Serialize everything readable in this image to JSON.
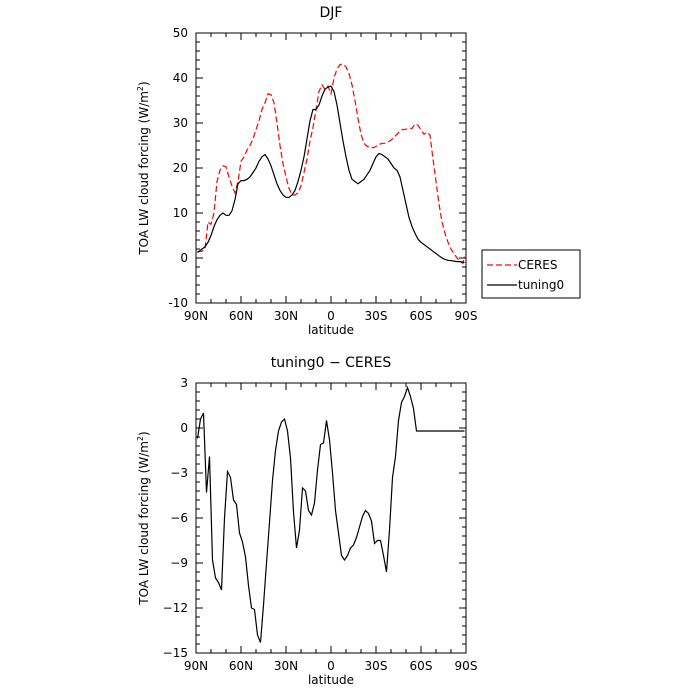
{
  "chart_data": [
    {
      "type": "line",
      "title": "DJF",
      "xlabel": "latitude",
      "ylabel_main": "TOA LW cloud forcing (W/m",
      "ylabel_sup": "2",
      "ylabel_end": ")",
      "xlim": [
        90,
        -90
      ],
      "ylim": [
        -10,
        50
      ],
      "x_ticks": [
        90,
        60,
        30,
        0,
        -30,
        -60,
        -90
      ],
      "x_tick_labels": [
        "90N",
        "60N",
        "30N",
        "0",
        "30S",
        "60S",
        "90S"
      ],
      "y_ticks": [
        -10,
        0,
        10,
        20,
        30,
        40,
        50
      ],
      "y_tick_labels": [
        "-10",
        "0",
        "10",
        "20",
        "30",
        "40",
        "50"
      ],
      "legend_placement": "right-outside",
      "series": [
        {
          "name": "CERES",
          "color": "#ff0000",
          "dash": "dashed",
          "x": [
            89,
            86,
            84,
            82,
            80,
            78,
            76,
            74,
            72,
            70,
            68,
            66,
            64,
            62,
            60,
            58,
            56,
            54,
            52,
            50,
            48,
            46,
            44,
            42,
            40,
            38,
            36,
            34,
            32,
            30,
            28,
            26,
            24,
            22,
            20,
            18,
            16,
            14,
            12,
            10,
            8,
            6,
            4,
            2,
            0,
            -2,
            -4,
            -6,
            -8,
            -10,
            -12,
            -14,
            -16,
            -18,
            -20,
            -22,
            -24,
            -26,
            -28,
            -30,
            -32,
            -34,
            -36,
            -38,
            -40,
            -42,
            -44,
            -46,
            -48,
            -50,
            -52,
            -54,
            -56,
            -58,
            -60,
            -62,
            -64,
            -66,
            -68,
            -70,
            -72,
            -74,
            -76,
            -78,
            -80,
            -82,
            -84,
            -86,
            -88,
            -89
          ],
          "values": [
            1.5,
            1.5,
            2,
            8,
            7.5,
            10,
            17,
            19.5,
            20.5,
            20.3,
            18,
            16,
            14.5,
            17,
            21.5,
            22.5,
            24,
            25,
            26.5,
            28.5,
            30.5,
            33,
            34.5,
            36.5,
            36.3,
            34.5,
            30,
            25,
            21,
            18,
            15.5,
            14,
            14,
            14.5,
            16,
            19,
            22,
            26,
            29,
            33,
            37,
            38.5,
            37.5,
            38.2,
            36.5,
            40,
            42,
            43,
            43,
            42.5,
            41,
            38.5,
            35,
            31,
            27.5,
            25.5,
            24.8,
            24.8,
            24.5,
            24.8,
            25.2,
            25.5,
            25.5,
            25.8,
            26.2,
            26.8,
            27.5,
            28.2,
            28.6,
            28.6,
            28.8,
            28.8,
            29.8,
            29.5,
            28.5,
            27.5,
            28,
            27.3,
            22,
            17,
            12,
            8,
            5.5,
            3.5,
            2,
            1,
            0,
            -0.8,
            -1.2,
            0.3
          ]
        },
        {
          "name": "tuning0",
          "color": "#000000",
          "dash": "solid",
          "x": [
            89,
            86,
            84,
            82,
            80,
            78,
            76,
            74,
            72,
            70,
            68,
            66,
            64,
            62,
            60,
            58,
            56,
            54,
            52,
            50,
            48,
            46,
            44,
            42,
            40,
            38,
            36,
            34,
            32,
            30,
            28,
            26,
            24,
            22,
            20,
            18,
            16,
            14,
            12,
            10,
            8,
            6,
            4,
            2,
            0,
            -2,
            -4,
            -6,
            -8,
            -10,
            -12,
            -14,
            -16,
            -18,
            -20,
            -22,
            -24,
            -26,
            -28,
            -30,
            -32,
            -34,
            -36,
            -38,
            -40,
            -42,
            -44,
            -46,
            -48,
            -50,
            -52,
            -54,
            -56,
            -58,
            -60,
            -62,
            -64,
            -66,
            -68,
            -70,
            -72,
            -74,
            -76,
            -78,
            -80,
            -82,
            -84,
            -86,
            -88,
            -89
          ],
          "values": [
            1.2,
            2,
            2.5,
            3.5,
            5,
            7,
            8.5,
            9.5,
            10,
            9.5,
            9.5,
            10.5,
            13,
            16.5,
            17.2,
            17.2,
            17.5,
            18,
            19,
            20,
            21.5,
            22.5,
            23,
            22,
            20.5,
            18.5,
            16.5,
            15,
            14,
            13.5,
            13.5,
            14,
            15,
            17,
            19.5,
            22.5,
            26.5,
            30.5,
            33,
            33,
            34,
            36,
            37.5,
            38,
            38.2,
            37,
            34,
            30,
            26,
            22.5,
            19.5,
            17.5,
            17,
            16.5,
            17,
            17.5,
            18.5,
            19.5,
            21,
            22.5,
            23.2,
            23,
            22.5,
            22,
            21,
            20,
            19.5,
            18,
            15,
            12,
            9,
            7,
            5.5,
            4.2,
            3.5,
            3,
            2.5,
            2,
            1.5,
            1,
            0.5,
            0,
            -0.3,
            -0.5,
            -0.6,
            -0.7,
            -0.8,
            -0.8,
            -0.9,
            -1
          ],
          "note_x_override": true
        }
      ]
    },
    {
      "type": "line",
      "title": "tuning0 − CERES",
      "xlabel": "latitude",
      "ylabel_main": "TOA LW cloud forcing (W/m",
      "ylabel_sup": "2",
      "ylabel_end": ")",
      "xlim": [
        90,
        -90
      ],
      "ylim": [
        -15,
        3
      ],
      "x_ticks": [
        90,
        60,
        30,
        0,
        -30,
        -60,
        -90
      ],
      "x_tick_labels": [
        "90N",
        "60N",
        "30N",
        "0",
        "30S",
        "60S",
        "90S"
      ],
      "y_ticks": [
        -15,
        -12,
        -9,
        -6,
        -3,
        0,
        3
      ],
      "y_tick_labels": [
        "−15",
        "−12",
        "−9",
        "−6",
        "−3",
        "0",
        "3"
      ],
      "series": [
        {
          "color": "#000000",
          "dash": "solid",
          "x": [
            89,
            87,
            85,
            83,
            81,
            79,
            77,
            75,
            73,
            71,
            69,
            67,
            65,
            63,
            61,
            59,
            57,
            55,
            53,
            51,
            49,
            47,
            45,
            43,
            41,
            39,
            37,
            35,
            33,
            31,
            29,
            27,
            25,
            23,
            21,
            19,
            17,
            15,
            13,
            11,
            9,
            7,
            5,
            3,
            1,
            -1,
            -3,
            -5,
            -7,
            -9,
            -11,
            -13,
            -15,
            -17,
            -19,
            -21,
            -23,
            -25,
            -27,
            -29,
            -31,
            -33,
            -35,
            -37,
            -39,
            -41,
            -43,
            -45,
            -47,
            -49,
            -51,
            -53,
            -55,
            -57,
            -59,
            -61,
            -63,
            -65,
            -67,
            -69,
            -71,
            -73,
            -75,
            -77,
            -79,
            -81,
            -83,
            -85,
            -87,
            -89
          ],
          "values": [
            -0.7,
            0.6,
            1.0,
            -4.3,
            -1.9,
            -8.8,
            -10.0,
            -10.3,
            -10.8,
            -6.0,
            -2.9,
            -3.3,
            -4.8,
            -5.1,
            -7.0,
            -7.6,
            -8.6,
            -10.5,
            -12.0,
            -12.1,
            -13.8,
            -14.3,
            -11.8,
            -9.0,
            -6.3,
            -3.5,
            -1.5,
            -0.2,
            0.4,
            0.6,
            -0.2,
            -2.0,
            -5.6,
            -8.0,
            -6.8,
            -4.0,
            -4.2,
            -5.5,
            -5.8,
            -5.0,
            -2.8,
            -1.1,
            -1.0,
            0.5,
            -0.8,
            -3.0,
            -5.5,
            -7.0,
            -8.5,
            -8.8,
            -8.5,
            -8.0,
            -7.8,
            -7.3,
            -6.6,
            -5.9,
            -5.5,
            -5.7,
            -6.2,
            -7.7,
            -7.5,
            -7.5,
            -8.5,
            -9.6,
            -6.8,
            -3.3,
            -1.9,
            0.5,
            1.7,
            2.1,
            2.7,
            2.1,
            1.3,
            -0.2,
            -0.2,
            -0.2,
            -0.2,
            -0.2,
            -0.2,
            -0.2,
            -0.2,
            -0.2,
            -0.2,
            -0.2,
            -0.2,
            -0.2,
            -0.2,
            -0.2,
            -0.2,
            -0.2
          ]
        }
      ]
    }
  ]
}
